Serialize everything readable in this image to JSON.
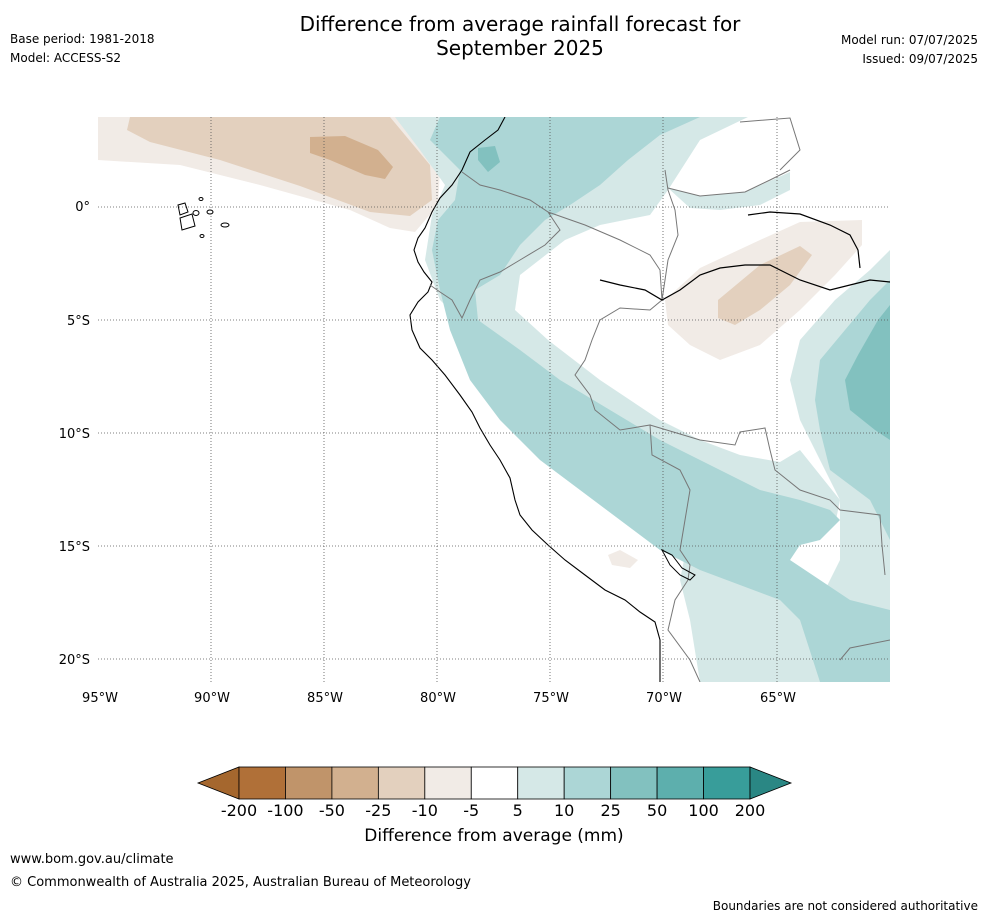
{
  "title": "Difference from average rainfall forecast for September 2025",
  "title_line1": "Difference from average rainfall forecast for",
  "title_line2": "September 2025",
  "base_period": "Base period: 1981-2018",
  "model": "Model: ACCESS-S2",
  "model_run": "Model run: 07/07/2025",
  "issued": "Issued: 09/07/2025",
  "map": {
    "lon_labels": [
      "95°W",
      "90°W",
      "85°W",
      "80°W",
      "75°W",
      "70°W",
      "65°W"
    ],
    "lat_labels": [
      "0°",
      "5°S",
      "10°S",
      "15°S",
      "20°S"
    ]
  },
  "colorbar": {
    "title": "Difference from average (mm)",
    "ticks": [
      "-200",
      "-100",
      "-50",
      "-25",
      "-10",
      "-5",
      "5",
      "10",
      "25",
      "50",
      "100",
      "200"
    ],
    "colors": [
      "#a5672e",
      "#b07038",
      "#c0946a",
      "#d2b08f",
      "#e3d0be",
      "#f1ebe6",
      "#ffffff",
      "#d5e8e7",
      "#acd6d6",
      "#82c1bf",
      "#5dafad",
      "#389d9a",
      "#2a8784"
    ]
  },
  "footer": {
    "url": "www.bom.gov.au/climate",
    "copyright": "© Commonwealth of Australia 2025, Australian Bureau of Meteorology",
    "disclaimer": "Boundaries are not considered authoritative"
  }
}
